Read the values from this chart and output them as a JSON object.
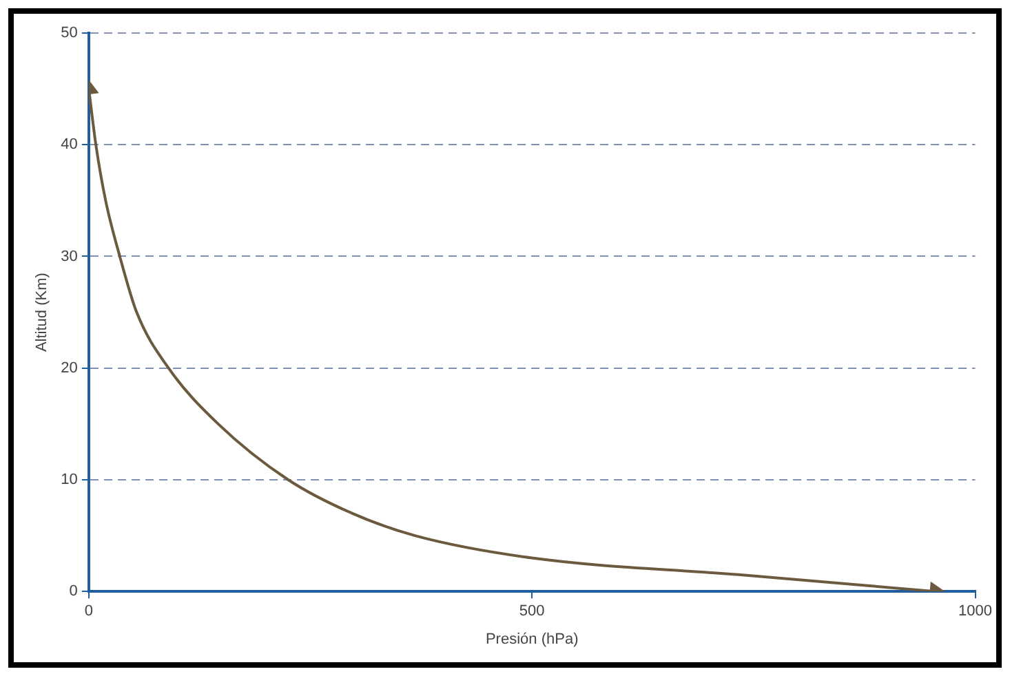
{
  "chart_data": {
    "type": "line",
    "xlabel": "Presión (hPa)",
    "ylabel": "Altitud (Km)",
    "x": [
      0,
      8,
      19,
      35,
      54,
      90,
      146,
      225,
      297,
      368,
      500,
      733,
      955
    ],
    "series": [
      {
        "color": "#6b5a3e",
        "values": [
          45,
          40,
          35,
          30,
          25,
          20,
          15,
          10,
          7,
          5,
          3,
          1.5,
          0
        ]
      }
    ],
    "xlim": [
      0,
      1000
    ],
    "xticks": [
      0,
      500,
      1000
    ],
    "ylim": [
      0,
      50
    ],
    "yticks": [
      0,
      10,
      20,
      30,
      40,
      50
    ],
    "grid": "y",
    "marker": "none",
    "line_style": "solid",
    "legend": false
  }
}
